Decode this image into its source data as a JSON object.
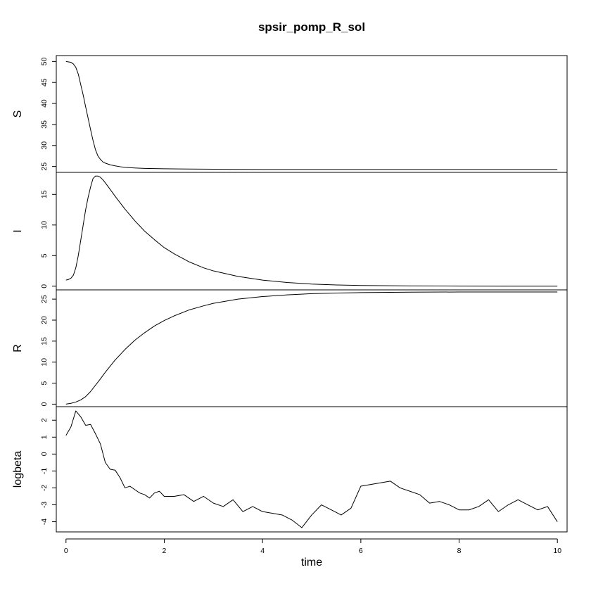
{
  "chart_data": {
    "type": "line",
    "title": "spsir_pomp_R_sol",
    "xlabel": "time",
    "xlim": [
      0,
      10
    ],
    "x_ticks": [
      0,
      2,
      4,
      6,
      8,
      10
    ],
    "x_tick_labels": [
      "0",
      "2",
      "4",
      "6",
      "8",
      "10"
    ],
    "grid": false,
    "legend": "none",
    "panels": [
      {
        "name": "S",
        "ylabel": "S",
        "ylim": [
          23.6,
          51.4
        ],
        "y_ticks": [
          25,
          30,
          35,
          40,
          45,
          50
        ],
        "y_tick_labels": [
          "25",
          "30",
          "35",
          "40",
          "45",
          "50"
        ],
        "x": [
          0,
          0.05,
          0.1,
          0.15,
          0.2,
          0.25,
          0.3,
          0.35,
          0.4,
          0.45,
          0.5,
          0.55,
          0.6,
          0.65,
          0.7,
          0.75,
          0.8,
          0.9,
          1.0,
          1.1,
          1.2,
          1.4,
          1.6,
          1.8,
          2.0,
          2.5,
          3,
          4,
          5,
          6,
          7,
          8,
          9,
          10
        ],
        "y": [
          50.0,
          49.9,
          49.8,
          49.4,
          48.6,
          47.0,
          44.5,
          42.0,
          39.2,
          36.5,
          33.8,
          31.2,
          29.0,
          27.5,
          26.7,
          26.1,
          25.8,
          25.4,
          25.15,
          24.95,
          24.8,
          24.65,
          24.55,
          24.5,
          24.45,
          24.4,
          24.35,
          24.3,
          24.3,
          24.3,
          24.3,
          24.3,
          24.3,
          24.3
        ]
      },
      {
        "name": "I",
        "ylabel": "I",
        "ylim": [
          -0.6,
          18.6
        ],
        "y_ticks": [
          0,
          5,
          10,
          15
        ],
        "y_tick_labels": [
          "0",
          "5",
          "10",
          "15"
        ],
        "x": [
          0,
          0.05,
          0.1,
          0.15,
          0.2,
          0.25,
          0.3,
          0.35,
          0.4,
          0.45,
          0.5,
          0.55,
          0.6,
          0.65,
          0.7,
          0.75,
          0.8,
          0.9,
          1.0,
          1.2,
          1.4,
          1.6,
          1.8,
          2.0,
          2.2,
          2.5,
          2.8,
          3.0,
          3.5,
          4.0,
          4.5,
          5.0,
          5.5,
          6.0,
          7.0,
          8.0,
          9.0,
          10.0
        ],
        "y": [
          1.0,
          1.1,
          1.3,
          1.8,
          3.0,
          5.0,
          7.5,
          10.0,
          12.5,
          14.5,
          16.2,
          17.6,
          18.0,
          18.0,
          17.8,
          17.4,
          16.9,
          15.8,
          14.7,
          12.6,
          10.7,
          9.0,
          7.6,
          6.3,
          5.3,
          4.0,
          3.0,
          2.5,
          1.6,
          1.0,
          0.6,
          0.35,
          0.2,
          0.12,
          0.05,
          0.02,
          0.01,
          0.01
        ]
      },
      {
        "name": "R",
        "ylabel": "R",
        "ylim": [
          -0.6,
          27.2
        ],
        "y_ticks": [
          0,
          5,
          10,
          15,
          20,
          25
        ],
        "y_tick_labels": [
          "0",
          "5",
          "10",
          "15",
          "20",
          "25"
        ],
        "x": [
          0,
          0.1,
          0.2,
          0.3,
          0.4,
          0.5,
          0.6,
          0.7,
          0.8,
          1.0,
          1.2,
          1.4,
          1.6,
          1.8,
          2.0,
          2.2,
          2.5,
          2.8,
          3.0,
          3.5,
          4.0,
          4.5,
          5.0,
          5.5,
          6.0,
          7.0,
          8.0,
          9.0,
          10.0
        ],
        "y": [
          0,
          0.2,
          0.5,
          1.0,
          1.8,
          3.0,
          4.5,
          6.0,
          7.6,
          10.5,
          13.0,
          15.2,
          17.0,
          18.6,
          19.9,
          21.0,
          22.4,
          23.4,
          24.0,
          25.0,
          25.6,
          26.0,
          26.3,
          26.45,
          26.55,
          26.65,
          26.7,
          26.7,
          26.7
        ]
      },
      {
        "name": "logbeta",
        "ylabel": "logbeta",
        "ylim": [
          -4.6,
          2.8
        ],
        "y_ticks": [
          -4,
          -3,
          -2,
          -1,
          0,
          1,
          2
        ],
        "y_tick_labels": [
          "-4",
          "-3",
          "-2",
          "-1",
          "0",
          "1",
          "2"
        ],
        "x": [
          0,
          0.1,
          0.2,
          0.3,
          0.4,
          0.5,
          0.6,
          0.7,
          0.8,
          0.9,
          1.0,
          1.1,
          1.2,
          1.3,
          1.4,
          1.5,
          1.6,
          1.7,
          1.8,
          1.9,
          2.0,
          2.2,
          2.4,
          2.6,
          2.8,
          3.0,
          3.2,
          3.4,
          3.6,
          3.8,
          4.0,
          4.2,
          4.4,
          4.6,
          4.8,
          5.0,
          5.2,
          5.4,
          5.6,
          5.8,
          6.0,
          6.2,
          6.4,
          6.6,
          6.8,
          7.0,
          7.2,
          7.4,
          7.6,
          7.8,
          8.0,
          8.2,
          8.4,
          8.6,
          8.8,
          9.0,
          9.2,
          9.4,
          9.6,
          9.8,
          10.0
        ],
        "y": [
          1.1,
          1.6,
          2.55,
          2.2,
          1.7,
          1.75,
          1.2,
          0.6,
          -0.5,
          -0.9,
          -0.95,
          -1.4,
          -2.0,
          -1.9,
          -2.1,
          -2.3,
          -2.4,
          -2.6,
          -2.3,
          -2.2,
          -2.5,
          -2.5,
          -2.4,
          -2.8,
          -2.5,
          -2.9,
          -3.1,
          -2.7,
          -3.4,
          -3.1,
          -3.4,
          -3.5,
          -3.6,
          -3.9,
          -4.35,
          -3.6,
          -3.0,
          -3.3,
          -3.6,
          -3.2,
          -1.9,
          -1.8,
          -1.7,
          -1.6,
          -2.0,
          -2.2,
          -2.4,
          -2.9,
          -2.8,
          -3.0,
          -3.3,
          -3.3,
          -3.1,
          -2.7,
          -3.4,
          -3.0,
          -2.7,
          -3.0,
          -3.3,
          -3.1,
          -4.0
        ]
      }
    ]
  }
}
